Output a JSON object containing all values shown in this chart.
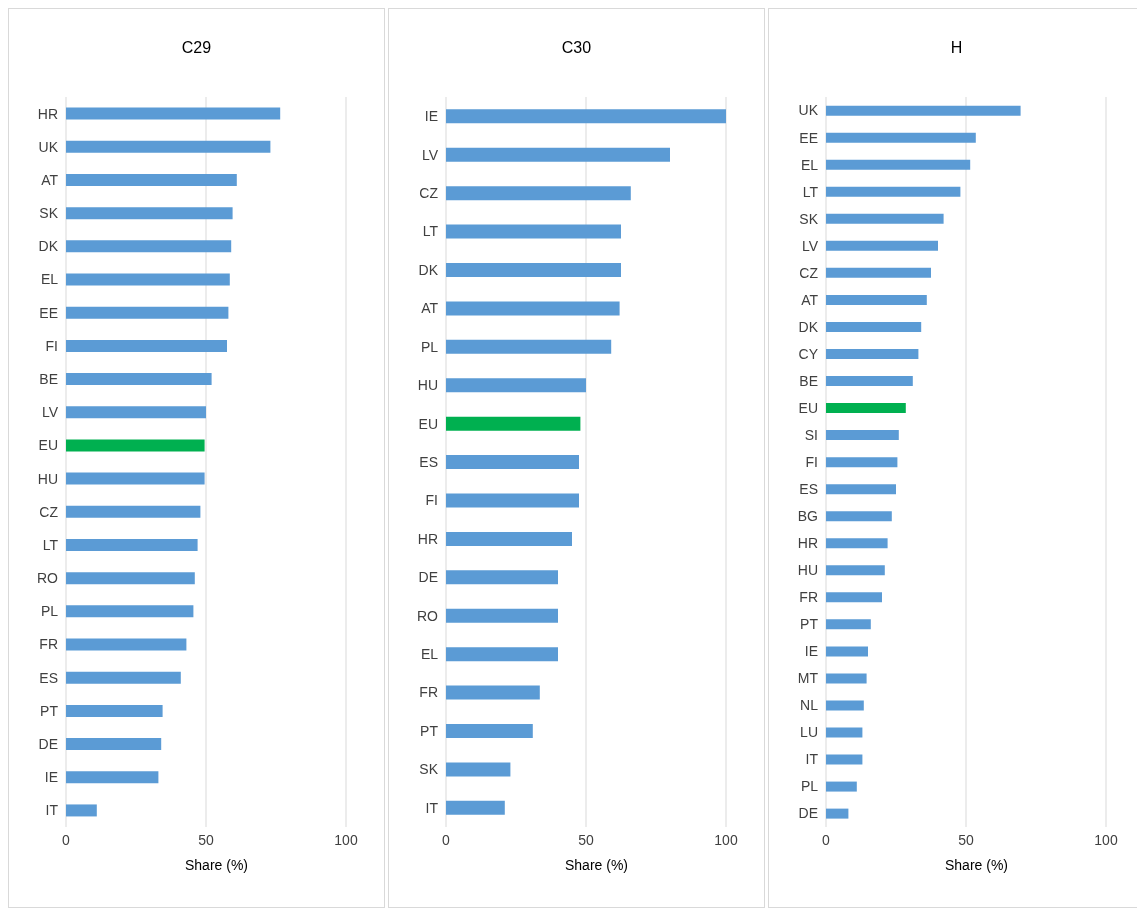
{
  "chart_data": [
    {
      "type": "bar",
      "orientation": "horizontal",
      "title": "C29",
      "xlabel": "Share (%)",
      "categories": [
        "HR",
        "UK",
        "AT",
        "SK",
        "DK",
        "EL",
        "EE",
        "FI",
        "BE",
        "LV",
        "EU",
        "HU",
        "CZ",
        "LT",
        "RO",
        "PL",
        "FR",
        "ES",
        "PT",
        "DE",
        "IE",
        "IT"
      ],
      "values": [
        76.5,
        73,
        61,
        59.5,
        59,
        58.5,
        58,
        57.5,
        52,
        50,
        49.5,
        49.5,
        48,
        47,
        46,
        45.5,
        43,
        41,
        34.5,
        34,
        33,
        11
      ],
      "colors": [
        "#5b9bd5",
        "#5b9bd5",
        "#5b9bd5",
        "#5b9bd5",
        "#5b9bd5",
        "#5b9bd5",
        "#5b9bd5",
        "#5b9bd5",
        "#5b9bd5",
        "#5b9bd5",
        "#00b050",
        "#5b9bd5",
        "#5b9bd5",
        "#5b9bd5",
        "#5b9bd5",
        "#5b9bd5",
        "#5b9bd5",
        "#5b9bd5",
        "#5b9bd5",
        "#5b9bd5",
        "#5b9bd5",
        "#5b9bd5"
      ],
      "xlim": [
        0,
        100
      ],
      "xticks": [
        0,
        50,
        100
      ],
      "grid": "x"
    },
    {
      "type": "bar",
      "orientation": "horizontal",
      "title": "C30",
      "xlabel": "Share (%)",
      "categories": [
        "IE",
        "LV",
        "CZ",
        "LT",
        "DK",
        "AT",
        "PL",
        "HU",
        "EU",
        "ES",
        "FI",
        "HR",
        "DE",
        "RO",
        "EL",
        "FR",
        "PT",
        "SK",
        "IT"
      ],
      "values": [
        100,
        80,
        66,
        62.5,
        62.5,
        62,
        59,
        50,
        48,
        47.5,
        47.5,
        45,
        40,
        40,
        40,
        33.5,
        31,
        23,
        21
      ],
      "colors": [
        "#5b9bd5",
        "#5b9bd5",
        "#5b9bd5",
        "#5b9bd5",
        "#5b9bd5",
        "#5b9bd5",
        "#5b9bd5",
        "#5b9bd5",
        "#00b050",
        "#5b9bd5",
        "#5b9bd5",
        "#5b9bd5",
        "#5b9bd5",
        "#5b9bd5",
        "#5b9bd5",
        "#5b9bd5",
        "#5b9bd5",
        "#5b9bd5",
        "#5b9bd5"
      ],
      "xlim": [
        0,
        100
      ],
      "xticks": [
        0,
        50,
        100
      ],
      "grid": "x"
    },
    {
      "type": "bar",
      "orientation": "horizontal",
      "title": "H",
      "xlabel": "Share (%)",
      "categories": [
        "UK",
        "EE",
        "EL",
        "LT",
        "SK",
        "LV",
        "CZ",
        "AT",
        "DK",
        "CY",
        "BE",
        "EU",
        "SI",
        "FI",
        "ES",
        "BG",
        "HR",
        "HU",
        "FR",
        "PT",
        "IE",
        "MT",
        "NL",
        "LU",
        "IT",
        "PL",
        "DE"
      ],
      "values": [
        69.5,
        53.5,
        51.5,
        48,
        42,
        40,
        37.5,
        36,
        34,
        33,
        31,
        28.5,
        26,
        25.5,
        25,
        23.5,
        22,
        21,
        20,
        16,
        15,
        14.5,
        13.5,
        13,
        13,
        11,
        8
      ],
      "colors": [
        "#5b9bd5",
        "#5b9bd5",
        "#5b9bd5",
        "#5b9bd5",
        "#5b9bd5",
        "#5b9bd5",
        "#5b9bd5",
        "#5b9bd5",
        "#5b9bd5",
        "#5b9bd5",
        "#5b9bd5",
        "#00b050",
        "#5b9bd5",
        "#5b9bd5",
        "#5b9bd5",
        "#5b9bd5",
        "#5b9bd5",
        "#5b9bd5",
        "#5b9bd5",
        "#5b9bd5",
        "#5b9bd5",
        "#5b9bd5",
        "#5b9bd5",
        "#5b9bd5",
        "#5b9bd5",
        "#5b9bd5",
        "#5b9bd5"
      ],
      "xlim": [
        0,
        100
      ],
      "xticks": [
        0,
        50,
        100
      ],
      "grid": "x"
    }
  ]
}
